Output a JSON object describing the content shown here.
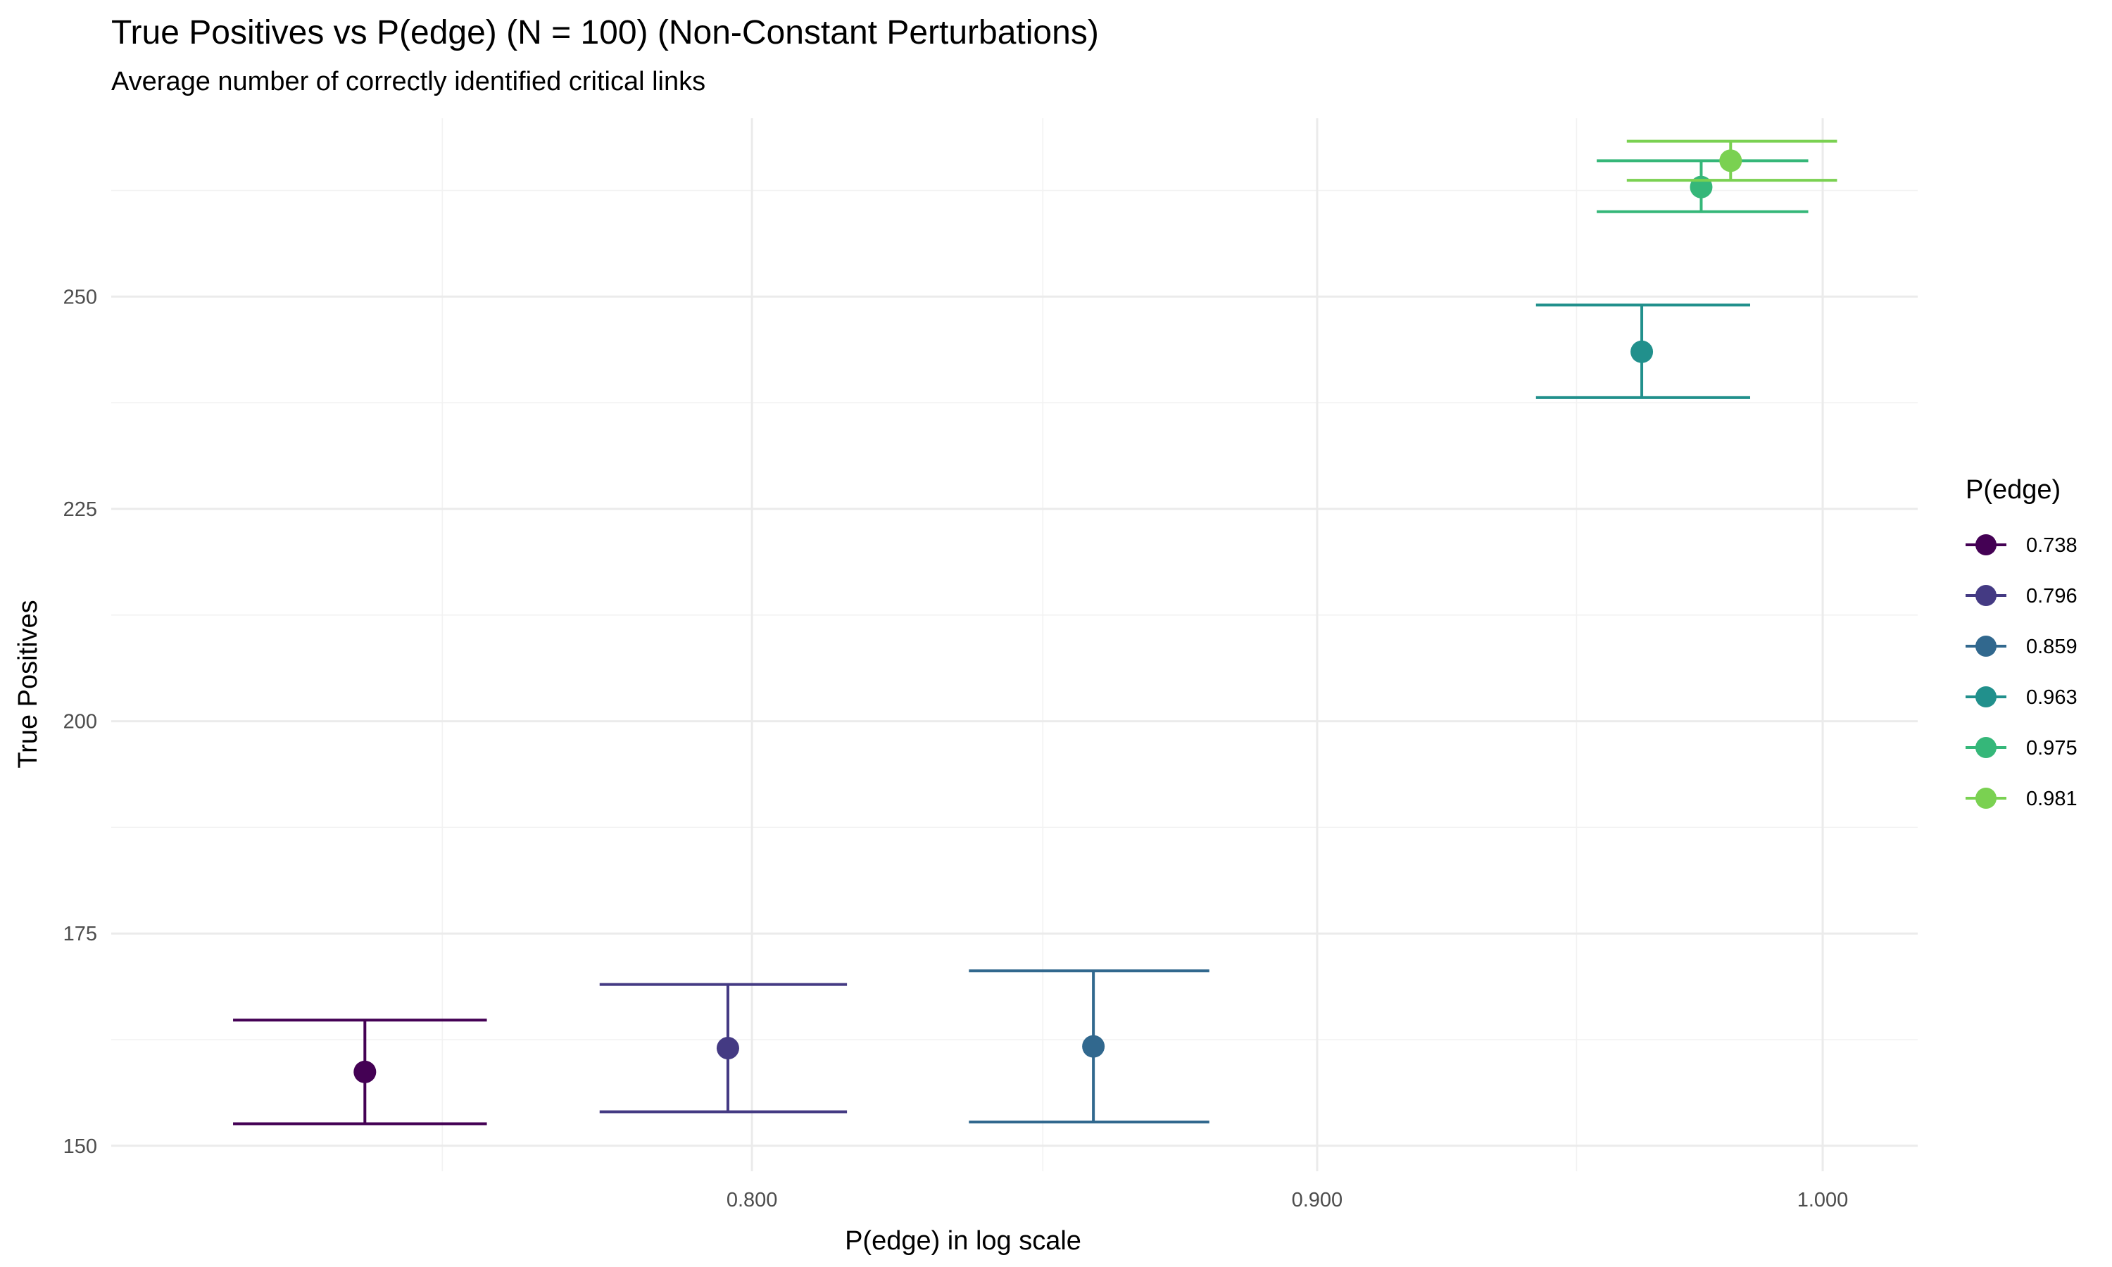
{
  "chart_data": {
    "type": "scatter",
    "title": "True Positives vs P(edge) (N = 100) (Non-Constant Perturbations)",
    "subtitle": "Average number of correctly identified critical links",
    "xlabel": "P(edge) in log scale",
    "ylabel": "True Positives",
    "x_scale": "log",
    "xlim": [
      0.7,
      1.02
    ],
    "ylim": [
      147,
      271
    ],
    "x_ticks": [
      {
        "value": 0.8,
        "label": "0.800"
      },
      {
        "value": 0.9,
        "label": "0.900"
      },
      {
        "value": 1.0,
        "label": "1.000"
      }
    ],
    "x_minor_ticks": [
      0.75,
      0.85,
      0.95
    ],
    "y_ticks": [
      {
        "value": 150,
        "label": "150"
      },
      {
        "value": 175,
        "label": "175"
      },
      {
        "value": 200,
        "label": "200"
      },
      {
        "value": 225,
        "label": "225"
      },
      {
        "value": 250,
        "label": "250"
      }
    ],
    "y_minor_ticks": [
      162.5,
      187.5,
      212.5,
      237.5,
      262.5
    ],
    "legend": {
      "title": "P(edge)",
      "position": "right"
    },
    "grid": true,
    "series": [
      {
        "name": "0.738",
        "color": "#440154",
        "x": 0.738,
        "y": 158.7,
        "ymin": 152.6,
        "ymax": 164.8,
        "xmin": 0.718,
        "xmax": 0.757
      },
      {
        "name": "0.796",
        "color": "#443A83",
        "x": 0.796,
        "y": 161.5,
        "ymin": 154.0,
        "ymax": 169.0,
        "xmin": 0.775,
        "xmax": 0.816
      },
      {
        "name": "0.859",
        "color": "#31688E",
        "x": 0.859,
        "y": 161.7,
        "ymin": 152.8,
        "ymax": 170.6,
        "xmin": 0.837,
        "xmax": 0.88
      },
      {
        "name": "0.963",
        "color": "#21908C",
        "x": 0.963,
        "y": 243.5,
        "ymin": 238.1,
        "ymax": 249.0,
        "xmin": 0.942,
        "xmax": 0.985
      },
      {
        "name": "0.975",
        "color": "#35B779",
        "x": 0.975,
        "y": 262.9,
        "ymin": 260.0,
        "ymax": 266.0,
        "xmin": 0.954,
        "xmax": 0.997
      },
      {
        "name": "0.981",
        "color": "#7AD151",
        "x": 0.981,
        "y": 266.0,
        "ymin": 263.7,
        "ymax": 268.3,
        "xmin": 0.96,
        "xmax": 1.003
      }
    ]
  }
}
